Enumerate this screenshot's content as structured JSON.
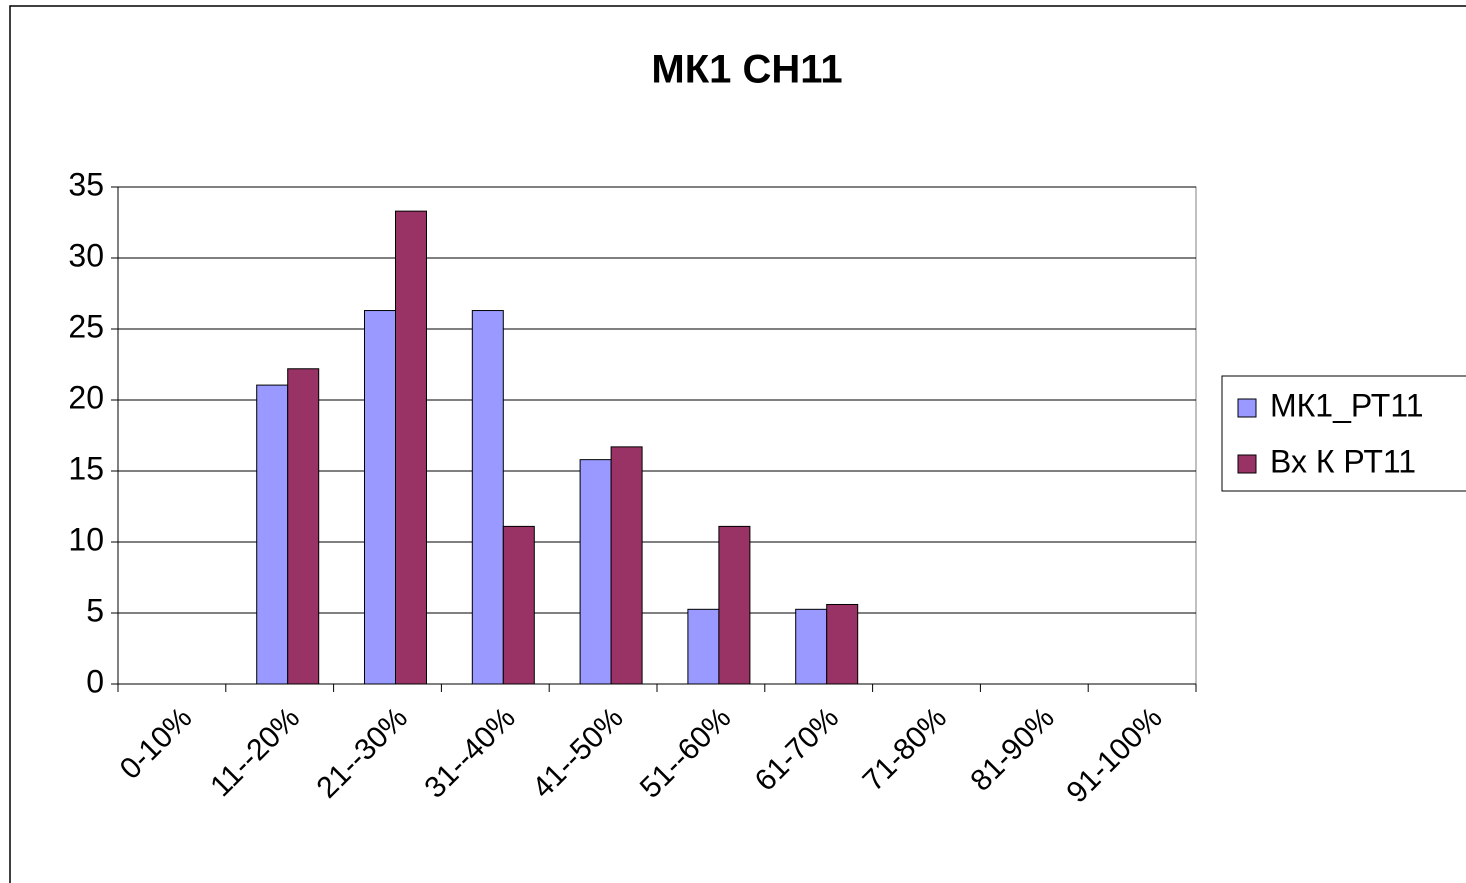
{
  "chart_data": {
    "type": "bar",
    "title": "МК1 СН11",
    "categories": [
      "0-10%",
      "11--20%",
      "21--30%",
      "31--40%",
      "41--50%",
      "51--60%",
      "61-70%",
      "71-80%",
      "81-90%",
      "91-100%"
    ],
    "series": [
      {
        "name": "МК1_РТ11",
        "color": "#9999ff",
        "values": [
          0,
          21.05,
          26.3,
          26.3,
          15.8,
          5.26,
          5.26,
          0,
          0,
          0
        ]
      },
      {
        "name": "Вх К РТ11",
        "color": "#993366",
        "values": [
          0,
          22.2,
          33.3,
          11.1,
          16.7,
          11.1,
          5.6,
          0,
          0,
          0
        ]
      }
    ],
    "ylim": [
      0,
      35
    ],
    "yticks": [
      0,
      5,
      10,
      15,
      20,
      25,
      30,
      35
    ],
    "grid": true,
    "legend": "right"
  }
}
